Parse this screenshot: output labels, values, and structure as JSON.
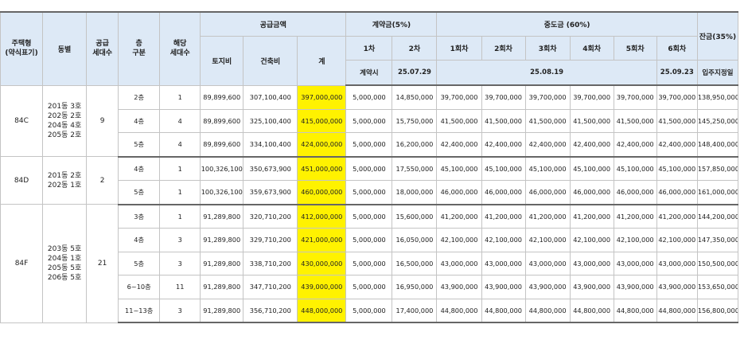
{
  "headers": {
    "type": "주택형\n(약식표기)",
    "building": "동별",
    "supply_units": "공급\n세대수",
    "floor_group": "층\n구분",
    "units": "해당\n세대수",
    "supply_amount": "공급금액",
    "land": "토지비",
    "construction": "건축비",
    "total": "계",
    "deposit": "계약금(5%)",
    "dep1": "1차",
    "dep2": "2차",
    "dep1_date": "계약시",
    "dep2_date": "25.07.29",
    "interim": "중도금 (60%)",
    "int1": "1회차",
    "int2": "2회차",
    "int3": "3회차",
    "int4": "4회차",
    "int5": "5회차",
    "int6": "6회차",
    "int15_date": "25.08.19",
    "int6_date": "25.09.23",
    "balance": "잔금(35%)",
    "balance_date": "입주지정일"
  },
  "groups": [
    {
      "type": "84C",
      "buildings": "201동  3호\n202동  2호\n204동  4호\n205동  2호",
      "supply_units": "9",
      "rows": [
        {
          "floor": "2층",
          "units": "1",
          "land": "89,899,600",
          "construction": "307,100,400",
          "total": "397,000,000",
          "dep1": "5,000,000",
          "dep2": "14,850,000",
          "i1": "39,700,000",
          "i2": "39,700,000",
          "i3": "39,700,000",
          "i4": "39,700,000",
          "i5": "39,700,000",
          "i6": "39,700,000",
          "balance": "138,950,000"
        },
        {
          "floor": "4층",
          "units": "4",
          "land": "89,899,600",
          "construction": "325,100,400",
          "total": "415,000,000",
          "dep1": "5,000,000",
          "dep2": "15,750,000",
          "i1": "41,500,000",
          "i2": "41,500,000",
          "i3": "41,500,000",
          "i4": "41,500,000",
          "i5": "41,500,000",
          "i6": "41,500,000",
          "balance": "145,250,000"
        },
        {
          "floor": "5층",
          "units": "4",
          "land": "89,899,600",
          "construction": "334,100,400",
          "total": "424,000,000",
          "dep1": "5,000,000",
          "dep2": "16,200,000",
          "i1": "42,400,000",
          "i2": "42,400,000",
          "i3": "42,400,000",
          "i4": "42,400,000",
          "i5": "42,400,000",
          "i6": "42,400,000",
          "balance": "148,400,000"
        }
      ]
    },
    {
      "type": "84D",
      "buildings": "201동  2호\n202동  1호",
      "supply_units": "2",
      "rows": [
        {
          "floor": "4층",
          "units": "1",
          "land": "100,326,100",
          "construction": "350,673,900",
          "total": "451,000,000",
          "dep1": "5,000,000",
          "dep2": "17,550,000",
          "i1": "45,100,000",
          "i2": "45,100,000",
          "i3": "45,100,000",
          "i4": "45,100,000",
          "i5": "45,100,000",
          "i6": "45,100,000",
          "balance": "157,850,000"
        },
        {
          "floor": "5층",
          "units": "1",
          "land": "100,326,100",
          "construction": "359,673,900",
          "total": "460,000,000",
          "dep1": "5,000,000",
          "dep2": "18,000,000",
          "i1": "46,000,000",
          "i2": "46,000,000",
          "i3": "46,000,000",
          "i4": "46,000,000",
          "i5": "46,000,000",
          "i6": "46,000,000",
          "balance": "161,000,000"
        }
      ]
    },
    {
      "type": "84F",
      "buildings": "203동  5호\n204동  1호\n205동  5호\n206동  5호",
      "supply_units": "21",
      "rows": [
        {
          "floor": "3층",
          "units": "1",
          "land": "91,289,800",
          "construction": "320,710,200",
          "total": "412,000,000",
          "dep1": "5,000,000",
          "dep2": "15,600,000",
          "i1": "41,200,000",
          "i2": "41,200,000",
          "i3": "41,200,000",
          "i4": "41,200,000",
          "i5": "41,200,000",
          "i6": "41,200,000",
          "balance": "144,200,000"
        },
        {
          "floor": "4층",
          "units": "3",
          "land": "91,289,800",
          "construction": "329,710,200",
          "total": "421,000,000",
          "dep1": "5,000,000",
          "dep2": "16,050,000",
          "i1": "42,100,000",
          "i2": "42,100,000",
          "i3": "42,100,000",
          "i4": "42,100,000",
          "i5": "42,100,000",
          "i6": "42,100,000",
          "balance": "147,350,000"
        },
        {
          "floor": "5층",
          "units": "3",
          "land": "91,289,800",
          "construction": "338,710,200",
          "total": "430,000,000",
          "dep1": "5,000,000",
          "dep2": "16,500,000",
          "i1": "43,000,000",
          "i2": "43,000,000",
          "i3": "43,000,000",
          "i4": "43,000,000",
          "i5": "43,000,000",
          "i6": "43,000,000",
          "balance": "150,500,000"
        },
        {
          "floor": "6~10층",
          "units": "11",
          "land": "91,289,800",
          "construction": "347,710,200",
          "total": "439,000,000",
          "dep1": "5,000,000",
          "dep2": "16,950,000",
          "i1": "43,900,000",
          "i2": "43,900,000",
          "i3": "43,900,000",
          "i4": "43,900,000",
          "i5": "43,900,000",
          "i6": "43,900,000",
          "balance": "153,650,000"
        },
        {
          "floor": "11~13층",
          "units": "3",
          "land": "91,289,800",
          "construction": "356,710,200",
          "total": "448,000,000",
          "dep1": "5,000,000",
          "dep2": "17,400,000",
          "i1": "44,800,000",
          "i2": "44,800,000",
          "i3": "44,800,000",
          "i4": "44,800,000",
          "i5": "44,800,000",
          "i6": "44,800,000",
          "balance": "156,800,000"
        }
      ]
    }
  ],
  "colors": {
    "header_bg": "#dde9f6",
    "highlight": "#fff200",
    "border": "#c4c4c4"
  }
}
